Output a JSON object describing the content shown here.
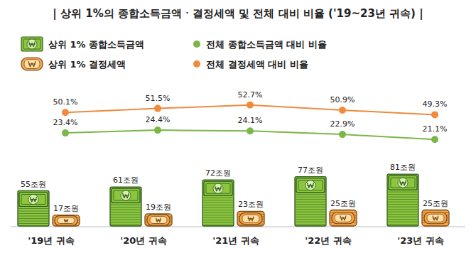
{
  "chart_data": {
    "type": "bar",
    "title": "| 상위 1%의 종합소득금액ㆍ결정세액 및 전체 대비 비율 ('19~23년 귀속) |",
    "categories": [
      "'19년 귀속",
      "'20년 귀속",
      "'21년 귀속",
      "'22년 귀속",
      "'23년 귀속"
    ],
    "legend": "top",
    "data_labels": true,
    "tick_labels": "x",
    "series": [
      {
        "name": "상위 1% 종합소득금액",
        "type": "bar",
        "color": "#8cc63f",
        "values": [
          55,
          61,
          72,
          77,
          81
        ],
        "value_labels": [
          "55조원",
          "61조원",
          "72조원",
          "77조원",
          "81조원"
        ]
      },
      {
        "name": "상위 1% 결정세액",
        "type": "bar",
        "color": "#f5a54a",
        "values": [
          17,
          19,
          23,
          25,
          25
        ],
        "value_labels": [
          "17조원",
          "19조원",
          "23조원",
          "25조원",
          "25조원"
        ]
      },
      {
        "name": "전체 종합소득금액 대비 비율",
        "type": "line",
        "color": "#7ab648",
        "marker": "circle",
        "values": [
          23.4,
          24.4,
          24.1,
          22.9,
          21.1
        ],
        "value_labels": [
          "23.4%",
          "24.4%",
          "24.1%",
          "22.9%",
          "21.1%"
        ]
      },
      {
        "name": "전체 결정세액 대비 비율",
        "type": "line",
        "color": "#f08a3c",
        "marker": "circle",
        "values": [
          50.1,
          51.5,
          52.7,
          50.9,
          49.3
        ],
        "value_labels": [
          "50.1%",
          "51.5%",
          "52.7%",
          "50.9%",
          "49.3%"
        ]
      }
    ]
  }
}
